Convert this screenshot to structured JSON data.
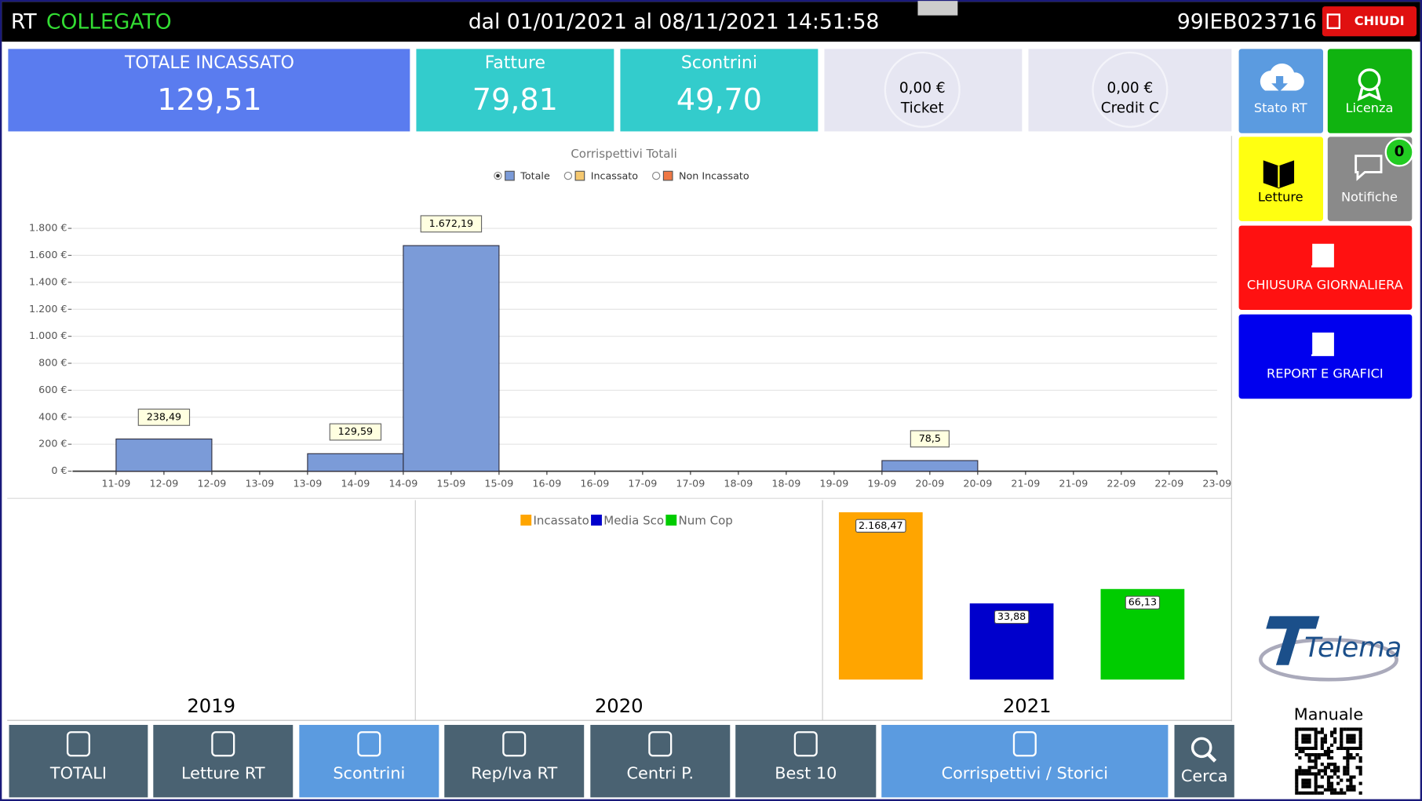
{
  "header": {
    "prefix": "RT",
    "status": "COLLEGATO",
    "period": "dal 01/01/2021 al 08/11/2021 14:51:58",
    "serial": "99IEB023716",
    "close": "CHIUDI"
  },
  "tiles": [
    {
      "label": "TOTALE INCASSATO",
      "value": "129,51"
    },
    {
      "label": "Fatture",
      "value": "79,81"
    },
    {
      "label": "Scontrini",
      "value": "49,70"
    },
    {
      "value": "0,00 €",
      "label": "Ticket"
    },
    {
      "value": "0,00 €",
      "label": "Credit C"
    }
  ],
  "sidebar": {
    "buttons": [
      "Stato RT",
      "Licenza",
      "Letture",
      "Notifiche",
      "CHIUSURA GIORNALIERA",
      "REPORT E GRAFICI"
    ],
    "badge": "0",
    "logo": "Telema",
    "manual": "Manuale"
  },
  "nav": [
    "TOTALI",
    "Letture RT",
    "Scontrini",
    "Rep/Iva RT",
    "Centri P.",
    "Best 10",
    "Corrispettivi / Storici",
    "Cerca"
  ],
  "chart_data": [
    {
      "type": "bar",
      "title": "Corrispettivi Totali",
      "legend": [
        {
          "name": "Totale",
          "color": "#7b9bd8"
        },
        {
          "name": "Incassato",
          "color": "#f5c870"
        },
        {
          "name": "Non Incassato",
          "color": "#ee7744"
        }
      ],
      "color": "#7b9bd8",
      "categories": [
        "11-09",
        "12-09",
        "12-09",
        "13-09",
        "13-09",
        "14-09",
        "14-09",
        "15-09",
        "15-09",
        "16-09",
        "16-09",
        "17-09",
        "17-09",
        "18-09",
        "18-09",
        "19-09",
        "19-09",
        "20-09",
        "20-09",
        "21-09",
        "21-09",
        "22-09",
        "22-09",
        "23-09"
      ],
      "values": [
        null,
        238.49,
        null,
        null,
        null,
        129.59,
        null,
        1672.19,
        null,
        null,
        null,
        null,
        null,
        null,
        null,
        null,
        null,
        78.5,
        null,
        null,
        null,
        null,
        null,
        null
      ],
      "value_labels": [
        null,
        "238,49",
        null,
        null,
        null,
        "129,59",
        null,
        "1.672,19",
        null,
        null,
        null,
        null,
        null,
        null,
        null,
        null,
        null,
        "78,5",
        null,
        null,
        null,
        null,
        null,
        null
      ],
      "ylim": [
        0,
        1950
      ],
      "yticks": [
        {
          "value": 0,
          "label": "0 €"
        },
        {
          "value": 200,
          "label": "200 €"
        },
        {
          "value": 400,
          "label": "400 €"
        },
        {
          "value": 600,
          "label": "600 €"
        },
        {
          "value": 800,
          "label": "800 €"
        },
        {
          "value": 1000,
          "label": "1.000 €"
        },
        {
          "value": 1200,
          "label": "1.200 €"
        },
        {
          "value": 1400,
          "label": "1.400 €"
        },
        {
          "value": 1600,
          "label": "1.600 €"
        },
        {
          "value": 1800,
          "label": "1.800 €"
        }
      ],
      "grid": true
    },
    {
      "type": "bar",
      "categories": [
        "2019",
        "2020",
        "2021"
      ],
      "series": [
        {
          "name": "Incassato",
          "color": "#ffa500",
          "values": [
            null,
            null,
            2168.47
          ],
          "value_labels": [
            null,
            null,
            "2.168,47"
          ],
          "ylim": [
            0,
            2290
          ]
        },
        {
          "name": "Media Sco",
          "color": "#0000cc",
          "values": [
            null,
            null,
            33.88
          ],
          "value_labels": [
            null,
            null,
            "33,88"
          ],
          "ylim": [
            0,
            78.6
          ]
        },
        {
          "name": "Num Cop",
          "color": "#00cc00",
          "values": [
            null,
            null,
            66.13
          ],
          "value_labels": [
            null,
            null,
            "66,13"
          ],
          "ylim": [
            0,
            129
          ]
        }
      ]
    }
  ]
}
